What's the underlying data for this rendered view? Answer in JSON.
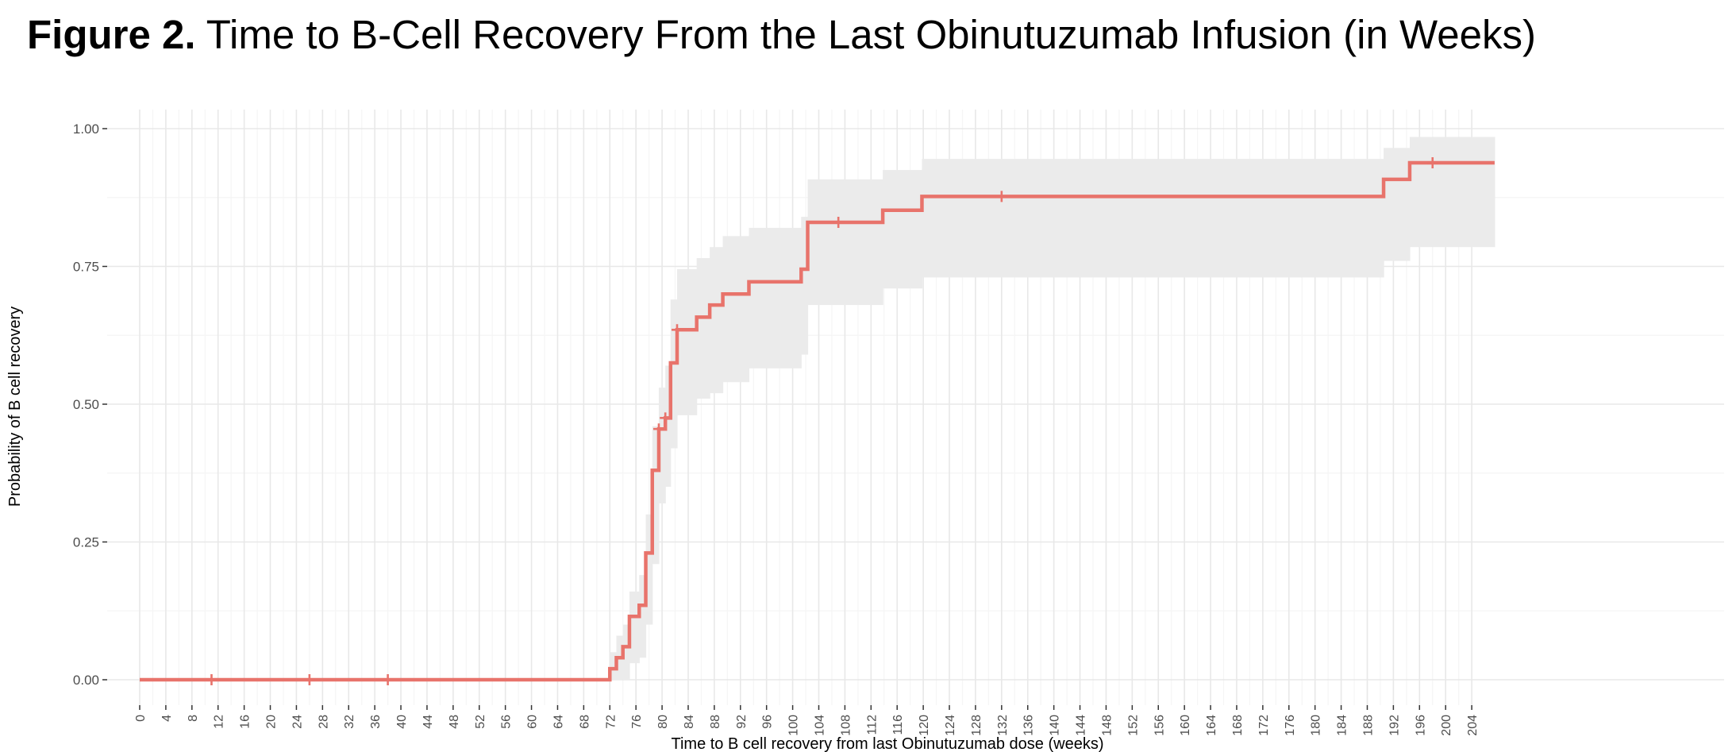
{
  "figure": {
    "label": "Figure 2.",
    "title": "Time to B-Cell Recovery From the Last Obinutuzumab Infusion (in Weeks)"
  },
  "chart_data": {
    "type": "line",
    "title": "Time to B-Cell Recovery From the Last Obinutuzumab Infusion (in Weeks)",
    "xlabel": "Time to B cell recovery from last Obinutuzumab dose (weeks)",
    "ylabel": "Probability of B cell recovery",
    "xlim": [
      -2,
      208
    ],
    "ylim": [
      -0.04,
      1.04
    ],
    "x_ticks": [
      0,
      4,
      8,
      12,
      16,
      20,
      24,
      28,
      32,
      36,
      40,
      44,
      48,
      52,
      56,
      60,
      64,
      68,
      72,
      76,
      80,
      84,
      88,
      92,
      96,
      100,
      104,
      108,
      112,
      116,
      120,
      124,
      128,
      132,
      136,
      140,
      144,
      148,
      152,
      156,
      160,
      164,
      168,
      172,
      176,
      180,
      184,
      188,
      192,
      196,
      200,
      204
    ],
    "y_ticks": [
      0.0,
      0.25,
      0.5,
      0.75,
      1.0
    ],
    "y_tick_labels": [
      "0.00",
      "0.25",
      "0.50",
      "0.75",
      "1.00"
    ],
    "grid": true,
    "line_color": "#e8736b",
    "band_color": "#ebebeb",
    "series": [
      {
        "step": [
          [
            0,
            0.0
          ],
          [
            72,
            0.0
          ],
          [
            72,
            0.02
          ],
          [
            73,
            0.04
          ],
          [
            74,
            0.06
          ],
          [
            75,
            0.115
          ],
          [
            76.5,
            0.135
          ],
          [
            77.5,
            0.23
          ],
          [
            78.5,
            0.38
          ],
          [
            79.5,
            0.455
          ],
          [
            80.5,
            0.475
          ],
          [
            81.3,
            0.575
          ],
          [
            82.3,
            0.635
          ],
          [
            85.3,
            0.658
          ],
          [
            87.3,
            0.68
          ],
          [
            89.3,
            0.7
          ],
          [
            93.3,
            0.722
          ],
          [
            101.3,
            0.745
          ],
          [
            102.3,
            0.83
          ],
          [
            113.8,
            0.852
          ],
          [
            119.8,
            0.877
          ],
          [
            190.5,
            0.908
          ],
          [
            194.5,
            0.938
          ],
          [
            207.5,
            0.938
          ]
        ],
        "ci_band": [
          [
            72,
            0.0,
            0.05
          ],
          [
            73,
            0.0,
            0.08
          ],
          [
            74,
            0.0,
            0.1
          ],
          [
            75,
            0.03,
            0.16
          ],
          [
            76.5,
            0.04,
            0.19
          ],
          [
            77.5,
            0.1,
            0.3
          ],
          [
            78.5,
            0.21,
            0.46
          ],
          [
            79.5,
            0.32,
            0.53
          ],
          [
            80.5,
            0.35,
            0.57
          ],
          [
            81.3,
            0.42,
            0.69
          ],
          [
            82.3,
            0.48,
            0.745
          ],
          [
            85.3,
            0.51,
            0.765
          ],
          [
            87.3,
            0.52,
            0.785
          ],
          [
            89.3,
            0.54,
            0.805
          ],
          [
            93.3,
            0.565,
            0.82
          ],
          [
            101.3,
            0.59,
            0.84
          ],
          [
            102.3,
            0.68,
            0.908
          ],
          [
            113.8,
            0.71,
            0.925
          ],
          [
            119.8,
            0.73,
            0.945
          ],
          [
            190.5,
            0.76,
            0.965
          ],
          [
            194.5,
            0.785,
            0.985
          ],
          [
            207.5,
            0.785,
            0.985
          ]
        ],
        "censored": [
          [
            11,
            0.0
          ],
          [
            26,
            0.0
          ],
          [
            38,
            0.0
          ],
          [
            79.5,
            0.455
          ],
          [
            80.5,
            0.475
          ],
          [
            82.3,
            0.635
          ],
          [
            107,
            0.83
          ],
          [
            132,
            0.877
          ],
          [
            198,
            0.938
          ]
        ]
      }
    ]
  }
}
